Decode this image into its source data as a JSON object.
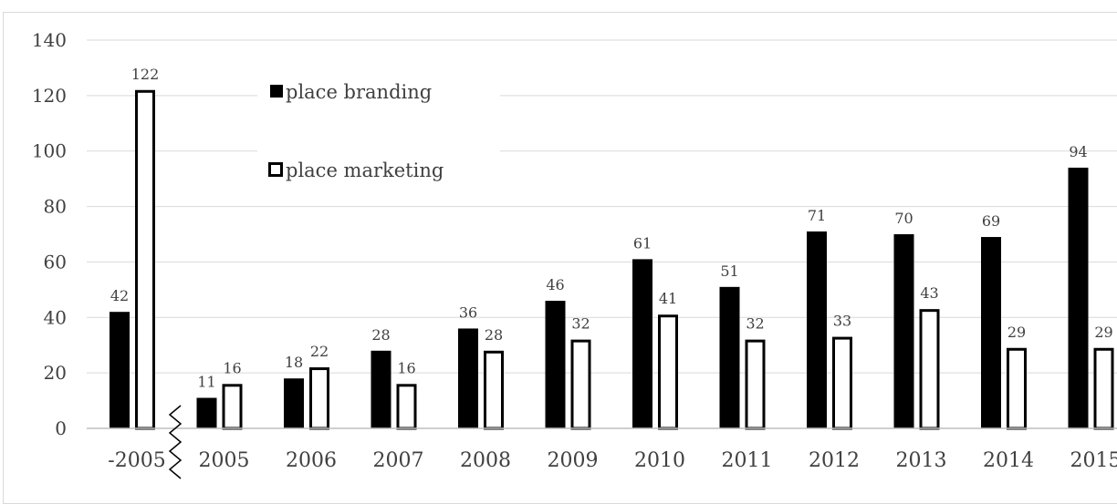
{
  "chart_data": {
    "type": "bar",
    "categories": [
      "-2005",
      "2005",
      "2006",
      "2007",
      "2008",
      "2009",
      "2010",
      "2011",
      "2012",
      "2013",
      "2014",
      "2015"
    ],
    "series": [
      {
        "name": "place branding",
        "values": [
          42,
          11,
          18,
          28,
          36,
          46,
          61,
          51,
          71,
          70,
          69,
          94
        ],
        "color": "#000000",
        "style": "filled"
      },
      {
        "name": "place marketing",
        "values": [
          122,
          16,
          22,
          16,
          28,
          32,
          41,
          32,
          33,
          43,
          29,
          29
        ],
        "color": "#000000",
        "style": "outlined"
      }
    ],
    "ylim": [
      0,
      140
    ],
    "yticks": [
      "0",
      "20",
      "40",
      "60",
      "80",
      "100",
      "120",
      "140"
    ],
    "grid": true,
    "legend_position": "top-left",
    "axis_break_after": "-2005"
  }
}
